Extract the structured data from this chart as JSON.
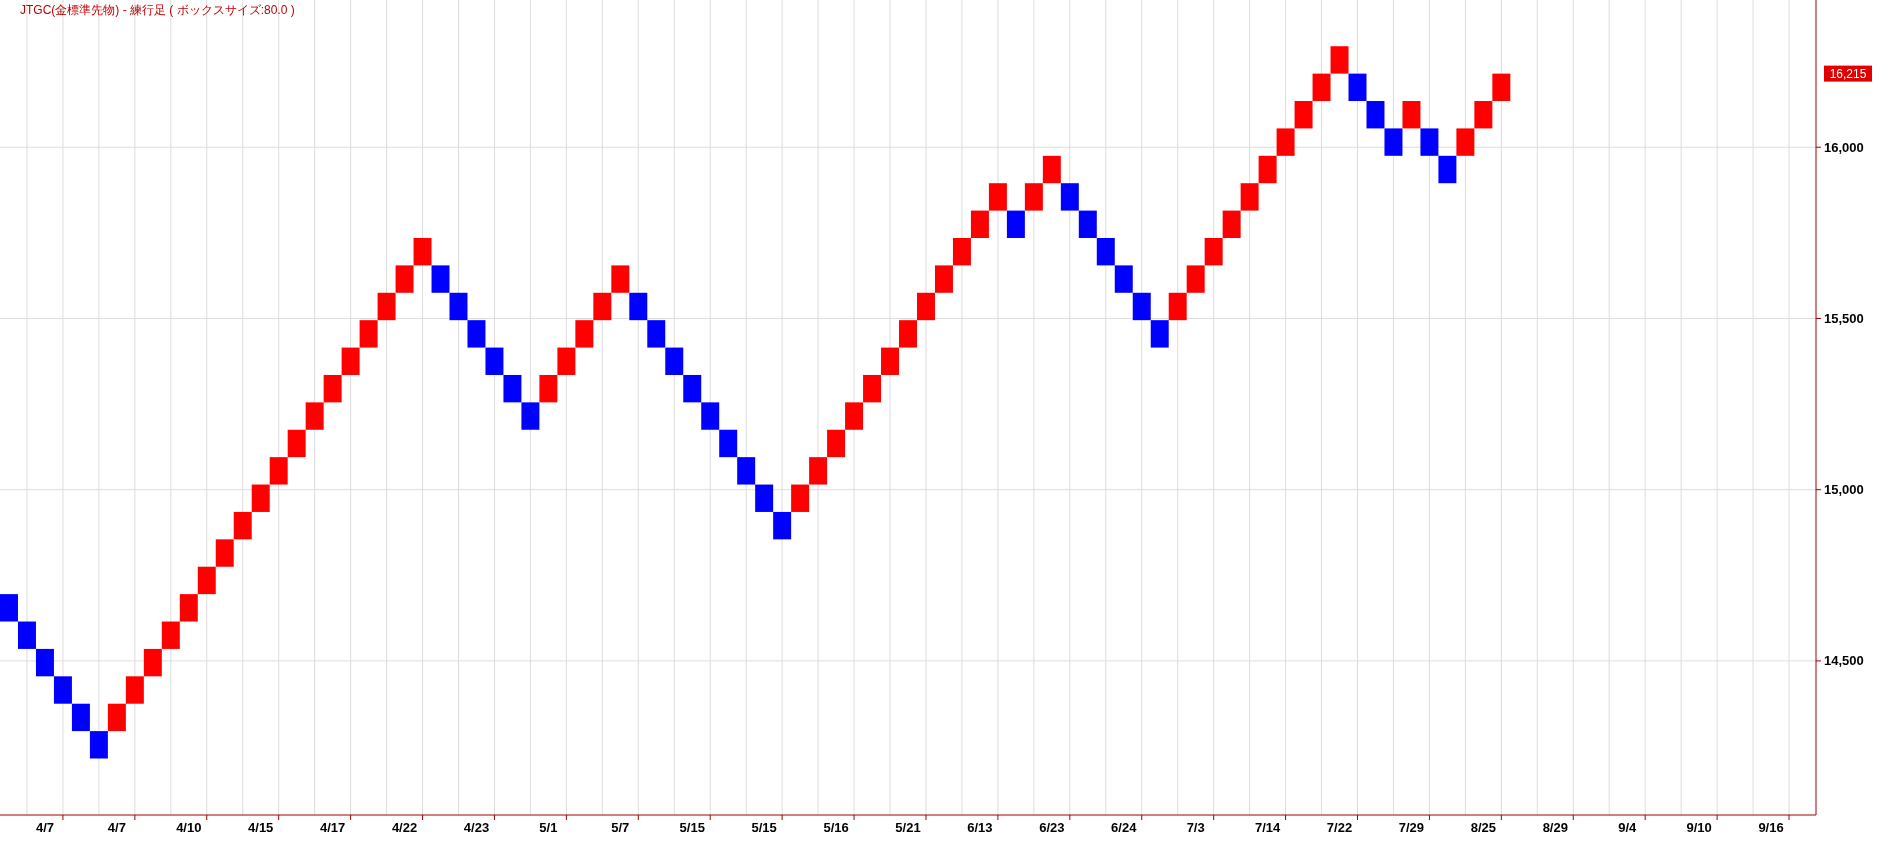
{
  "chart_data": {
    "type": "bar",
    "title": "JTGC(金標準先物) - 練行足 ( ボックスサイズ:80.0 )",
    "categories": [
      null,
      null,
      "4/7",
      null,
      null,
      null,
      "4/7",
      null,
      null,
      null,
      "4/10",
      null,
      null,
      null,
      "4/15",
      null,
      null,
      null,
      "4/17",
      null,
      null,
      null,
      "4/22",
      null,
      null,
      null,
      "4/23",
      null,
      null,
      null,
      "5/1",
      null,
      null,
      null,
      "5/7",
      null,
      null,
      null,
      "5/15",
      null,
      null,
      null,
      "5/15",
      null,
      null,
      null,
      "5/16",
      null,
      null,
      null,
      "5/21",
      null,
      null,
      null,
      "6/13",
      null,
      null,
      null,
      "6/23",
      null,
      null,
      null,
      "6/24",
      null,
      null,
      null,
      "7/3",
      null,
      null,
      null,
      "7/14",
      null,
      null,
      null,
      "7/22",
      null,
      null,
      null,
      "7/29",
      null,
      null,
      null,
      "8/25",
      null,
      null,
      null,
      "8/29",
      null,
      null,
      null,
      "9/4",
      null,
      null,
      null,
      "9/10",
      null,
      null,
      null,
      "9/16",
      null,
      null
    ],
    "values": [
      80,
      80,
      80,
      80,
      80,
      80,
      80,
      80,
      80,
      80,
      80,
      80,
      80,
      80,
      80,
      80,
      80,
      80,
      80,
      80,
      80,
      80,
      80,
      80,
      80,
      80,
      80,
      80,
      80,
      80,
      80,
      80,
      80,
      80,
      80,
      80,
      80,
      80,
      80,
      80,
      80,
      80,
      80,
      80,
      80,
      80,
      80,
      80,
      80,
      80,
      80,
      80,
      80,
      80,
      80,
      80,
      80,
      80,
      80,
      80,
      80,
      80,
      80,
      80,
      80,
      80,
      80,
      80,
      80,
      80,
      80,
      80,
      80,
      80,
      80,
      80,
      80,
      80,
      80,
      80,
      80,
      80,
      80,
      80,
      null,
      null,
      null,
      null,
      null,
      null,
      null,
      null,
      null,
      null,
      null,
      null,
      null,
      null,
      null,
      null,
      null
    ],
    "base": [
      14615,
      14535,
      14455,
      14375,
      14295,
      14215,
      14295,
      14375,
      14455,
      14535,
      14615,
      14695,
      14775,
      14855,
      14935,
      15015,
      15095,
      15175,
      15255,
      15335,
      15415,
      15495,
      15575,
      15655,
      15575,
      15495,
      15415,
      15335,
      15255,
      15175,
      15255,
      15335,
      15415,
      15495,
      15575,
      15495,
      15415,
      15335,
      15255,
      15175,
      15095,
      15015,
      14935,
      14855,
      14935,
      15015,
      15095,
      15175,
      15255,
      15335,
      15415,
      15495,
      15575,
      15655,
      15735,
      15815,
      15735,
      15815,
      15895,
      15815,
      15735,
      15655,
      15575,
      15495,
      15415,
      15495,
      15575,
      15655,
      15735,
      15815,
      15895,
      15975,
      16055,
      16135,
      16215,
      16135,
      16055,
      15975,
      16055,
      15975,
      15895,
      15975,
      16055,
      16135,
      null,
      null,
      null,
      null,
      null,
      null,
      null,
      null,
      null,
      null,
      null,
      null,
      null,
      null,
      null,
      null,
      null
    ],
    "colors": [
      "#0000ff",
      "#0000ff",
      "#0000ff",
      "#0000ff",
      "#0000ff",
      "#0000ff",
      "#ff0000",
      "#ff0000",
      "#ff0000",
      "#ff0000",
      "#ff0000",
      "#ff0000",
      "#ff0000",
      "#ff0000",
      "#ff0000",
      "#ff0000",
      "#ff0000",
      "#ff0000",
      "#ff0000",
      "#ff0000",
      "#ff0000",
      "#ff0000",
      "#ff0000",
      "#ff0000",
      "#0000ff",
      "#0000ff",
      "#0000ff",
      "#0000ff",
      "#0000ff",
      "#0000ff",
      "#ff0000",
      "#ff0000",
      "#ff0000",
      "#ff0000",
      "#ff0000",
      "#0000ff",
      "#0000ff",
      "#0000ff",
      "#0000ff",
      "#0000ff",
      "#0000ff",
      "#0000ff",
      "#0000ff",
      "#0000ff",
      "#ff0000",
      "#ff0000",
      "#ff0000",
      "#ff0000",
      "#ff0000",
      "#ff0000",
      "#ff0000",
      "#ff0000",
      "#ff0000",
      "#ff0000",
      "#ff0000",
      "#ff0000",
      "#0000ff",
      "#ff0000",
      "#ff0000",
      "#0000ff",
      "#0000ff",
      "#0000ff",
      "#0000ff",
      "#0000ff",
      "#0000ff",
      "#ff0000",
      "#ff0000",
      "#ff0000",
      "#ff0000",
      "#ff0000",
      "#ff0000",
      "#ff0000",
      "#ff0000",
      "#ff0000",
      "#ff0000",
      "#0000ff",
      "#0000ff",
      "#0000ff",
      "#ff0000",
      "#0000ff",
      "#0000ff",
      "#ff0000",
      "#ff0000",
      "#ff0000",
      null,
      null,
      null,
      null,
      null,
      null,
      null,
      null,
      null,
      null,
      null,
      null,
      null,
      null,
      null,
      null,
      null
    ],
    "ylim": [
      14050,
      16430
    ],
    "yticks": [
      {
        "value": 14500,
        "label": "14,500"
      },
      {
        "value": 15000,
        "label": "15,000"
      },
      {
        "value": 15500,
        "label": "15,500"
      },
      {
        "value": 16000,
        "label": "16,000"
      }
    ],
    "grid": true,
    "annotations": [
      "16,215"
    ]
  }
}
